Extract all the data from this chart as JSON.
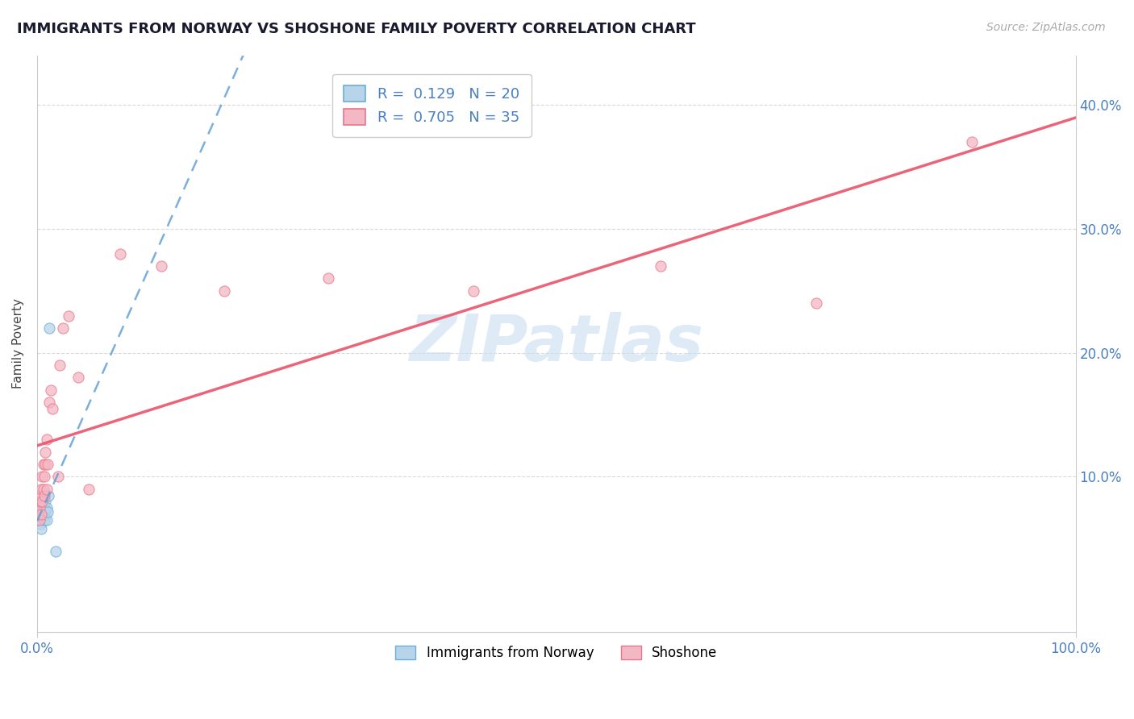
{
  "title": "IMMIGRANTS FROM NORWAY VS SHOSHONE FAMILY POVERTY CORRELATION CHART",
  "source": "Source: ZipAtlas.com",
  "ylabel": "Family Poverty",
  "xlim": [
    0.0,
    1.0
  ],
  "ylim": [
    -0.025,
    0.44
  ],
  "y_ticks": [
    0.1,
    0.2,
    0.3,
    0.4
  ],
  "y_tick_labels": [
    "10.0%",
    "20.0%",
    "30.0%",
    "40.0%"
  ],
  "x_ticks": [
    0.0,
    1.0
  ],
  "x_tick_labels": [
    "0.0%",
    "100.0%"
  ],
  "legend1_r": "0.129",
  "legend1_n": "20",
  "legend2_r": "0.705",
  "legend2_n": "35",
  "norway_face_color": "#b8d4ea",
  "norway_edge_color": "#6aaed6",
  "shoshone_face_color": "#f4b8c4",
  "shoshone_edge_color": "#e8768a",
  "norway_line_color": "#5b9bd5",
  "shoshone_line_color": "#e8546a",
  "tick_color": "#4a7fc1",
  "watermark_text": "ZIPatlas",
  "watermark_color": "#c8dff0",
  "legend_text_color": "#4a7fc1",
  "norway_x": [
    0.001,
    0.002,
    0.003,
    0.003,
    0.004,
    0.004,
    0.005,
    0.005,
    0.006,
    0.006,
    0.007,
    0.007,
    0.008,
    0.008,
    0.009,
    0.009,
    0.01,
    0.011,
    0.012,
    0.018
  ],
  "norway_y": [
    0.065,
    0.068,
    0.062,
    0.072,
    0.058,
    0.075,
    0.068,
    0.078,
    0.07,
    0.082,
    0.065,
    0.075,
    0.07,
    0.08,
    0.065,
    0.075,
    0.072,
    0.085,
    0.22,
    0.04
  ],
  "shoshone_x": [
    0.001,
    0.002,
    0.002,
    0.003,
    0.003,
    0.004,
    0.004,
    0.005,
    0.005,
    0.006,
    0.006,
    0.007,
    0.007,
    0.008,
    0.008,
    0.009,
    0.009,
    0.01,
    0.012,
    0.013,
    0.015,
    0.02,
    0.022,
    0.025,
    0.03,
    0.04,
    0.05,
    0.08,
    0.12,
    0.18,
    0.28,
    0.42,
    0.6,
    0.75,
    0.9
  ],
  "shoshone_y": [
    0.07,
    0.065,
    0.075,
    0.08,
    0.085,
    0.07,
    0.09,
    0.08,
    0.1,
    0.09,
    0.11,
    0.1,
    0.085,
    0.11,
    0.12,
    0.09,
    0.13,
    0.11,
    0.16,
    0.17,
    0.155,
    0.1,
    0.19,
    0.22,
    0.23,
    0.18,
    0.09,
    0.28,
    0.27,
    0.25,
    0.26,
    0.25,
    0.27,
    0.24,
    0.37
  ]
}
